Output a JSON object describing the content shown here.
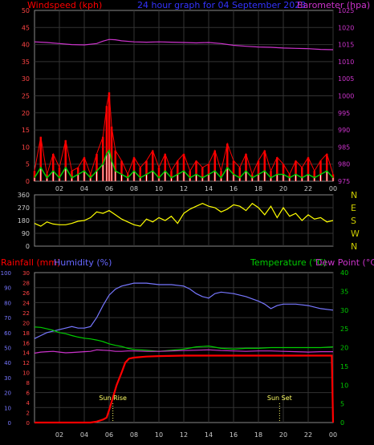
{
  "chart_data": [
    {
      "id": "wind_baro",
      "type": "line",
      "title": "24 hour graph for  04 September 2023",
      "title_color": "#3333ff",
      "ylabel_left": "Windspeed (kph)",
      "ylabel_left_color": "#ff0000",
      "ylabel_right": "Barometer (hpa)",
      "ylabel_right_color": "#cc33cc",
      "ylim_left": [
        0,
        50
      ],
      "yticks_left": [
        "0",
        "5",
        "10",
        "15",
        "20",
        "25",
        "30",
        "35",
        "40",
        "45",
        "50"
      ],
      "ylim_right": [
        975,
        1025
      ],
      "yticks_right": [
        "975",
        "980",
        "985",
        "990",
        "995",
        "1000",
        "1005",
        "1010",
        "1015",
        "1020",
        "1025"
      ],
      "xticks": [
        "02",
        "04",
        "06",
        "08",
        "10",
        "12",
        "14",
        "16",
        "18",
        "20",
        "22",
        "00"
      ],
      "x_range_hours": [
        0,
        24
      ],
      "grid": true,
      "series": [
        {
          "kind": "barometer",
          "color": "#cc33cc",
          "x": [
            0,
            1,
            2,
            3,
            4,
            5,
            5.5,
            6,
            6.5,
            7,
            8,
            9,
            10,
            11,
            12,
            13,
            14,
            15,
            16,
            17,
            18,
            19,
            20,
            21,
            22,
            23,
            24
          ],
          "values": [
            1015.8,
            1015.6,
            1015.3,
            1015.0,
            1014.9,
            1015.3,
            1016.0,
            1016.5,
            1016.4,
            1016.1,
            1015.8,
            1015.7,
            1015.8,
            1015.7,
            1015.6,
            1015.5,
            1015.6,
            1015.3,
            1014.8,
            1014.5,
            1014.3,
            1014.2,
            1014.0,
            1013.9,
            1013.8,
            1013.6,
            1013.5
          ]
        },
        {
          "kind": "gust",
          "color": "#ff0000",
          "x": [
            0,
            0.5,
            1,
            1.5,
            2,
            2.5,
            3,
            3.5,
            4,
            4.5,
            5,
            5.5,
            5.8,
            6,
            6.2,
            6.5,
            7,
            7.5,
            8,
            8.5,
            9,
            9.5,
            10,
            10.5,
            11,
            11.5,
            12,
            12.5,
            13,
            13.5,
            14,
            14.5,
            15,
            15.5,
            16,
            16.5,
            17,
            17.5,
            18,
            18.5,
            19,
            19.5,
            20,
            20.5,
            21,
            21.5,
            22,
            22.5,
            23,
            23.5,
            24
          ],
          "values": [
            3,
            13,
            2,
            8,
            4,
            12,
            3,
            4,
            7,
            2,
            8,
            13,
            22,
            26,
            16,
            9,
            6,
            2,
            7,
            4,
            6,
            9,
            4,
            8,
            3,
            6,
            8,
            3,
            6,
            4,
            5,
            9,
            3,
            11,
            6,
            4,
            8,
            2,
            6,
            9,
            3,
            7,
            5,
            2,
            6,
            4,
            7,
            3,
            6,
            8,
            2
          ]
        },
        {
          "kind": "average",
          "color": "#00cc00",
          "x": [
            0,
            0.5,
            1,
            1.5,
            2,
            2.5,
            3,
            3.5,
            4,
            4.5,
            5,
            5.5,
            5.8,
            6,
            6.2,
            6.5,
            7,
            7.5,
            8,
            8.5,
            9,
            9.5,
            10,
            10.5,
            11,
            11.5,
            12,
            12.5,
            13,
            13.5,
            14,
            14.5,
            15,
            15.5,
            16,
            16.5,
            17,
            17.5,
            18,
            18.5,
            19,
            19.5,
            20,
            20.5,
            21,
            21.5,
            22,
            22.5,
            23,
            23.5,
            24
          ],
          "values": [
            1,
            4,
            1,
            3,
            1,
            4,
            1,
            2,
            3,
            1,
            3,
            5,
            8,
            9,
            6,
            3,
            2,
            1,
            3,
            1,
            2,
            3,
            1,
            3,
            1,
            2,
            3,
            1,
            2,
            1,
            2,
            3,
            1,
            4,
            2,
            1,
            3,
            1,
            2,
            3,
            1,
            2,
            2,
            1,
            2,
            1,
            2,
            1,
            2,
            3,
            1
          ]
        }
      ]
    },
    {
      "id": "wind_dir",
      "type": "line",
      "ylim": [
        0,
        360
      ],
      "yticks": [
        "0",
        "90",
        "180",
        "270",
        "360"
      ],
      "right_labels": [
        "N",
        "W",
        "S",
        "E",
        "N"
      ],
      "right_label_color": "#cccc00",
      "xticks": [
        "02",
        "04",
        "06",
        "08",
        "10",
        "12",
        "14",
        "16",
        "18",
        "20",
        "22",
        "00"
      ],
      "grid": true,
      "series": [
        {
          "kind": "direction",
          "color": "#ffff00",
          "x": [
            0,
            0.5,
            1,
            1.5,
            2,
            2.5,
            3,
            3.5,
            4,
            4.5,
            5,
            5.5,
            6,
            6.5,
            7,
            7.5,
            8,
            8.5,
            9,
            9.5,
            10,
            10.5,
            11,
            11.5,
            12,
            12.5,
            13,
            13.5,
            14,
            14.5,
            15,
            15.5,
            16,
            16.5,
            17,
            17.5,
            18,
            18.5,
            19,
            19.5,
            20,
            20.5,
            21,
            21.5,
            22,
            22.5,
            23,
            23.5,
            24
          ],
          "values": [
            160,
            140,
            170,
            155,
            150,
            150,
            160,
            175,
            180,
            200,
            240,
            230,
            250,
            220,
            190,
            170,
            150,
            140,
            190,
            170,
            200,
            180,
            210,
            160,
            230,
            260,
            280,
            300,
            280,
            270,
            240,
            260,
            290,
            280,
            250,
            300,
            270,
            220,
            280,
            200,
            270,
            210,
            230,
            180,
            220,
            190,
            200,
            170,
            180
          ]
        }
      ]
    },
    {
      "id": "rain_hum_temp",
      "type": "line",
      "ylabel_rain": "Rainfall (mm)",
      "ylabel_rain_color": "#ff0000",
      "ylabel_humidity": "Humidity (%)",
      "ylabel_humidity_color": "#6666ff",
      "ylabel_temp": "Temperature (°C)",
      "ylabel_temp_color": "#00cc00",
      "ylabel_dew": "Dew Point (°C)",
      "ylabel_dew_color": "#cc33cc",
      "ylim_humidity": [
        0,
        100
      ],
      "yticks_humidity": [
        "0",
        "10",
        "20",
        "30",
        "40",
        "50",
        "60",
        "70",
        "80",
        "90",
        "100"
      ],
      "ylim_rain": [
        0,
        30
      ],
      "yticks_rain": [
        "0",
        "2",
        "4",
        "6",
        "8",
        "10",
        "12",
        "14",
        "16",
        "18",
        "20",
        "22",
        "24",
        "26",
        "28",
        "30"
      ],
      "ylim_temp": [
        0,
        40
      ],
      "yticks_temp": [
        "0",
        "5",
        "10",
        "15",
        "20",
        "25",
        "30",
        "35",
        "40"
      ],
      "xticks": [
        "02",
        "04",
        "06",
        "08",
        "10",
        "12",
        "14",
        "16",
        "18",
        "20",
        "22",
        "00"
      ],
      "grid": true,
      "annotations": [
        {
          "text": "Sun Rise",
          "x": 6.3
        },
        {
          "text": "Sun Set",
          "x": 19.7
        }
      ],
      "series": [
        {
          "kind": "humidity",
          "color": "#7777ff",
          "x": [
            0,
            0.5,
            1,
            1.5,
            2,
            2.5,
            3,
            3.5,
            4,
            4.5,
            5,
            5.5,
            6,
            6.5,
            7,
            7.5,
            8,
            9,
            10,
            11,
            12,
            12.5,
            13,
            13.5,
            14,
            14.5,
            15,
            16,
            17,
            18,
            18.5,
            19,
            19.5,
            20,
            21,
            22,
            23,
            24
          ],
          "values": [
            56,
            58,
            60,
            61,
            62,
            63,
            64,
            63,
            63,
            64,
            70,
            78,
            85,
            89,
            91,
            92,
            93,
            93,
            92,
            92,
            91,
            89,
            86,
            84,
            83,
            86,
            87,
            86,
            84,
            81,
            79,
            76,
            78,
            79,
            79,
            78,
            76,
            75
          ]
        },
        {
          "kind": "rain",
          "color": "#ff0000",
          "x": [
            0,
            4.5,
            5,
            5.5,
            5.8,
            6,
            6.3,
            6.6,
            7,
            7.3,
            7.6,
            8,
            9,
            10,
            12,
            14,
            16,
            18,
            20,
            22,
            23.9,
            24
          ],
          "values": [
            0,
            0,
            0.2,
            0.6,
            1,
            2.5,
            5,
            7.5,
            10,
            12,
            12.8,
            13,
            13.2,
            13.3,
            13.4,
            13.4,
            13.4,
            13.4,
            13.4,
            13.4,
            13.4,
            0
          ]
        },
        {
          "kind": "temperature",
          "color": "#00cc00",
          "x": [
            0,
            0.5,
            1,
            1.5,
            2,
            2.5,
            3,
            3.5,
            4,
            4.5,
            5,
            5.5,
            6,
            6.5,
            7,
            7.5,
            8,
            9,
            10,
            11,
            12,
            13,
            14,
            15,
            16,
            17,
            18,
            19,
            20,
            21,
            22,
            23,
            24
          ],
          "values": [
            25.5,
            25.4,
            25,
            24.6,
            24,
            23.7,
            23.2,
            22.8,
            22.5,
            22.3,
            22.0,
            21.6,
            21.0,
            20.6,
            20.3,
            19.8,
            19.5,
            19.3,
            19.0,
            19.3,
            19.6,
            20.2,
            20.4,
            19.8,
            19.6,
            19.8,
            19.8,
            20.0,
            20.0,
            20.0,
            20.0,
            20.0,
            20.2
          ]
        },
        {
          "kind": "dewpoint",
          "color": "#cc33cc",
          "x": [
            0,
            0.5,
            1,
            1.5,
            2,
            2.5,
            3,
            3.5,
            4,
            4.5,
            5,
            5.5,
            6,
            6.5,
            7,
            7.5,
            8,
            9,
            10,
            11,
            12,
            13,
            14,
            15,
            16,
            17,
            18,
            19,
            20,
            21,
            22,
            23,
            24
          ],
          "values": [
            18.5,
            18.8,
            18.9,
            19.0,
            18.8,
            18.6,
            18.7,
            18.8,
            18.9,
            19.0,
            19.4,
            19.3,
            19.2,
            19.0,
            19.0,
            19.1,
            19.1,
            19.0,
            19.0,
            19.1,
            19.2,
            19.3,
            19.4,
            19.2,
            19.1,
            19.0,
            19.1,
            19.1,
            19.0,
            18.9,
            18.8,
            18.9,
            18.9
          ]
        }
      ]
    }
  ]
}
